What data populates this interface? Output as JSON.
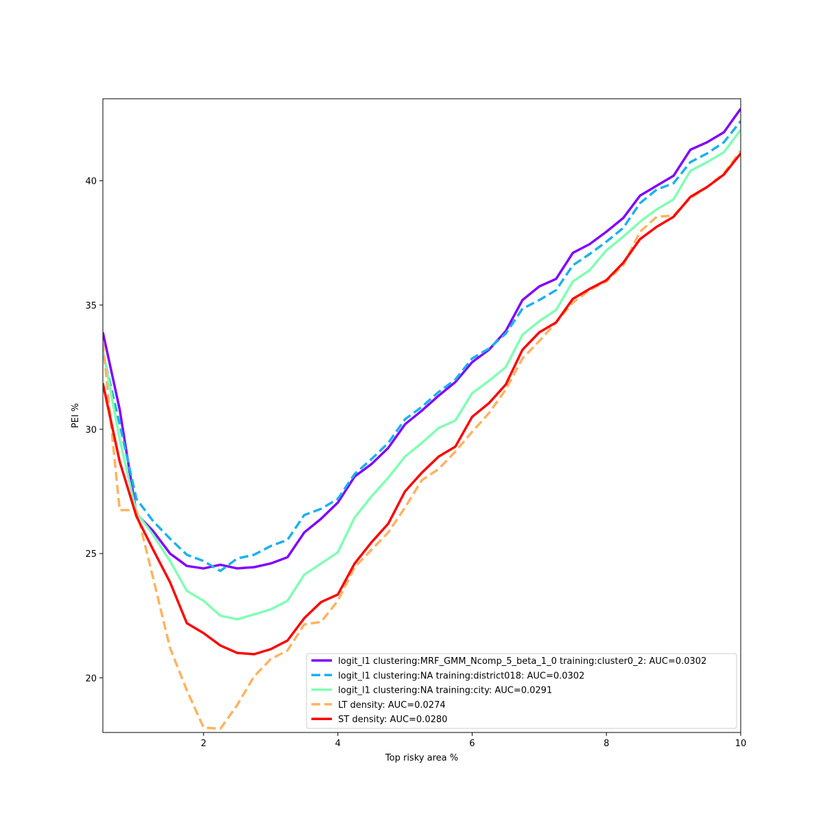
{
  "chart_data": {
    "type": "line",
    "title": "",
    "xlabel": "Top risky area %",
    "ylabel": "PEI %",
    "xlim": [
      0.5,
      10
    ],
    "ylim": [
      17.8,
      43.3
    ],
    "xticks": [
      2,
      4,
      6,
      8,
      10
    ],
    "yticks": [
      20,
      25,
      30,
      35,
      40
    ],
    "grid": false,
    "legend_position": "lower-right",
    "x": [
      0.5,
      0.75,
      1.0,
      1.25,
      1.5,
      1.75,
      2.0,
      2.25,
      2.5,
      2.75,
      3.0,
      3.25,
      3.5,
      3.75,
      4.0,
      4.25,
      4.5,
      4.75,
      5.0,
      5.25,
      5.5,
      5.75,
      6.0,
      6.25,
      6.5,
      6.75,
      7.0,
      7.25,
      7.5,
      7.75,
      8.0,
      8.25,
      8.5,
      8.75,
      9.0,
      9.25,
      9.5,
      9.75,
      10.0
    ],
    "series": [
      {
        "name": "logit_l1 clustering:MRF_GMM_Ncomp_5_beta_1_0 training:cluster0_2: AUC=0.0302",
        "color": "#8000ff",
        "dash": "solid",
        "values": [
          33.9,
          30.8,
          26.6,
          25.9,
          25.0,
          24.5,
          24.4,
          24.55,
          24.4,
          24.45,
          24.6,
          24.85,
          25.85,
          26.4,
          27.05,
          28.1,
          28.6,
          29.25,
          30.2,
          30.75,
          31.35,
          31.9,
          32.7,
          33.2,
          33.95,
          35.2,
          35.75,
          36.05,
          37.1,
          37.45,
          37.95,
          38.5,
          39.4,
          39.8,
          40.2,
          41.25,
          41.55,
          41.95,
          42.9
        ]
      },
      {
        "name": "logit_l1 clustering:NA training:district018: AUC=0.0302",
        "color": "#1ab2ee",
        "dash": "dashed",
        "values": [
          33.1,
          30.2,
          27.2,
          26.3,
          25.6,
          24.95,
          24.7,
          24.3,
          24.8,
          24.95,
          25.3,
          25.55,
          26.55,
          26.8,
          27.2,
          28.2,
          28.8,
          29.45,
          30.4,
          30.9,
          31.5,
          32.0,
          32.85,
          33.25,
          33.85,
          34.85,
          35.2,
          35.6,
          36.6,
          37.05,
          37.55,
          38.1,
          39.1,
          39.65,
          39.9,
          40.75,
          41.1,
          41.55,
          42.4
        ]
      },
      {
        "name": "logit_l1 clustering:NA training:city: AUC=0.0291",
        "color": "#80ffb4",
        "dash": "solid",
        "values": [
          33.2,
          29.6,
          26.65,
          25.75,
          24.7,
          23.5,
          23.1,
          22.5,
          22.35,
          22.55,
          22.75,
          23.1,
          24.15,
          24.6,
          25.05,
          26.45,
          27.3,
          28.05,
          28.9,
          29.45,
          30.05,
          30.35,
          31.45,
          31.95,
          32.5,
          33.8,
          34.35,
          34.8,
          35.95,
          36.4,
          37.2,
          37.75,
          38.35,
          38.85,
          39.25,
          40.4,
          40.75,
          41.15,
          42.05
        ]
      },
      {
        "name": "LT density: AUC=0.0274",
        "color": "#ffb360",
        "dash": "dashed",
        "values": [
          33.5,
          26.75,
          26.75,
          24.0,
          21.2,
          19.5,
          18.0,
          17.95,
          18.9,
          20.05,
          20.75,
          21.1,
          22.15,
          22.25,
          23.1,
          24.45,
          25.15,
          25.85,
          26.85,
          27.95,
          28.4,
          29.1,
          29.9,
          30.65,
          31.6,
          32.85,
          33.55,
          34.3,
          35.1,
          35.6,
          35.95,
          36.6,
          37.95,
          38.55,
          38.6,
          39.3,
          39.75,
          40.3,
          41.2
        ]
      },
      {
        "name": "ST density: AUC=0.0280",
        "color": "#ff0000",
        "dash": "solid",
        "values": [
          31.85,
          28.7,
          26.5,
          25.15,
          23.85,
          22.2,
          21.8,
          21.3,
          21.0,
          20.95,
          21.15,
          21.5,
          22.4,
          23.05,
          23.35,
          24.6,
          25.45,
          26.2,
          27.5,
          28.25,
          28.9,
          29.3,
          30.5,
          31.05,
          31.8,
          33.2,
          33.9,
          34.3,
          35.25,
          35.65,
          36.0,
          36.7,
          37.65,
          38.15,
          38.55,
          39.35,
          39.75,
          40.25,
          41.1
        ]
      }
    ]
  }
}
